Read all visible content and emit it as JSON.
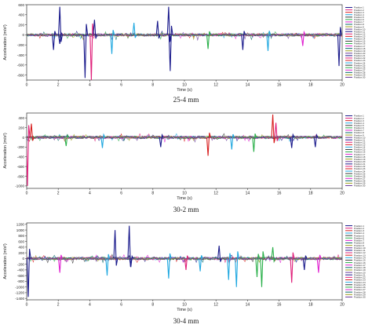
{
  "captions": [
    "25-4 mm",
    "30-2 mm",
    "30-4 mm"
  ],
  "chart_data": [
    {
      "type": "line",
      "caption": "25-4 mm",
      "xlabel": "Time (s)",
      "ylabel": "Acceleration (m/s²)",
      "xlim": [
        0,
        20
      ],
      "ylim": [
        -900,
        600
      ],
      "xticks": [
        0,
        2,
        4,
        6,
        8,
        10,
        12,
        14,
        16,
        18,
        20
      ],
      "yticks": [
        600,
        400,
        200,
        0,
        -200,
        -400,
        -600,
        -800
      ],
      "legend_position": "right",
      "legend": [
        "Position 1",
        "Position 2",
        "Position 3",
        "Position 4",
        "Position 5",
        "Position 6",
        "Position 7",
        "Position 8",
        "Position 9",
        "Position 10",
        "Position 11",
        "Position 12",
        "Position 13",
        "Position 14",
        "Position 15",
        "Position 16",
        "Position 17",
        "Position 18",
        "Position 19",
        "Position 20",
        "Position 21",
        "Position 22",
        "Position 23",
        "Position 24",
        "Position 25",
        "Position 26",
        "Position 27",
        "Position 28",
        "Position 29",
        "Position 30"
      ],
      "colors": [
        "#1a1a8c",
        "#e0207a",
        "#d81e1e",
        "#20a8e0",
        "#3a3a3a",
        "#2ab04a",
        "#e020d0",
        "#0a6a6a",
        "#a0a020",
        "#6a3a9a"
      ],
      "spikes": [
        {
          "x": 2.1,
          "y": 560,
          "series": 1
        },
        {
          "x": 2.1,
          "y": -180,
          "series": 1
        },
        {
          "x": 3.7,
          "y": -860,
          "series": 1
        },
        {
          "x": 4.1,
          "y": -900,
          "series": 2
        },
        {
          "x": 4.3,
          "y": 300,
          "series": 1
        },
        {
          "x": 9.0,
          "y": 560,
          "series": 1
        },
        {
          "x": 9.1,
          "y": -720,
          "series": 1
        },
        {
          "x": 8.3,
          "y": 280,
          "series": 1
        },
        {
          "x": 5.4,
          "y": -380,
          "series": 4
        },
        {
          "x": 1.7,
          "y": -300,
          "series": 1
        },
        {
          "x": 11.5,
          "y": -280,
          "series": 6
        },
        {
          "x": 13.7,
          "y": -300,
          "series": 1
        },
        {
          "x": 15.3,
          "y": -320,
          "series": 4
        },
        {
          "x": 17.5,
          "y": -220,
          "series": 7
        },
        {
          "x": 19.8,
          "y": -620,
          "series": 1
        },
        {
          "x": 6.8,
          "y": 240,
          "series": 4
        }
      ]
    },
    {
      "type": "line",
      "caption": "30-2 mm",
      "xlabel": "Time (s)",
      "ylabel": "Acceleration (m/s²)",
      "xlim": [
        0,
        20
      ],
      "ylim": [
        -1050,
        500
      ],
      "xticks": [
        0,
        2,
        4,
        6,
        8,
        10,
        12,
        14,
        16,
        18,
        20
      ],
      "yticks": [
        400,
        200,
        0,
        -200,
        -400,
        -600,
        -800,
        -1000
      ],
      "legend_position": "right",
      "legend": [
        "Position 1",
        "Position 2",
        "Position 3",
        "Position 4",
        "Position 5",
        "Position 6",
        "Position 7",
        "Position 8",
        "Position 9",
        "Position 10",
        "Position 11",
        "Position 12",
        "Position 13",
        "Position 14",
        "Position 15",
        "Position 16",
        "Position 17",
        "Position 18",
        "Position 19",
        "Position 20",
        "Position 21",
        "Position 22",
        "Position 23",
        "Position 24",
        "Position 25",
        "Position 26",
        "Position 27",
        "Position 28",
        "Position 29",
        "Position 30"
      ],
      "colors": [
        "#1a1a8c",
        "#e0207a",
        "#d81e1e",
        "#20a8e0",
        "#3a3a3a",
        "#2ab04a",
        "#e020d0",
        "#0a6a6a",
        "#a0a020",
        "#6a3a9a"
      ],
      "spikes": [
        {
          "x": 0.05,
          "y": -1000,
          "series": 2
        },
        {
          "x": 0.3,
          "y": 280,
          "series": 3
        },
        {
          "x": 11.5,
          "y": -380,
          "series": 3
        },
        {
          "x": 15.6,
          "y": 470,
          "series": 3
        },
        {
          "x": 15.8,
          "y": 300,
          "series": 2
        },
        {
          "x": 16.8,
          "y": -220,
          "series": 1
        },
        {
          "x": 14.4,
          "y": -300,
          "series": 6
        },
        {
          "x": 18.3,
          "y": -200,
          "series": 1
        },
        {
          "x": 4.8,
          "y": -220,
          "series": 4
        },
        {
          "x": 8.5,
          "y": -200,
          "series": 1
        },
        {
          "x": 13.0,
          "y": -250,
          "series": 4
        },
        {
          "x": 2.5,
          "y": -180,
          "series": 6
        }
      ]
    },
    {
      "type": "line",
      "caption": "30-4 mm",
      "xlabel": "Time (s)",
      "ylabel": "Acceleration (m/s²)",
      "xlim": [
        0,
        20
      ],
      "ylim": [
        -1450,
        1250
      ],
      "xticks": [
        0,
        2,
        4,
        6,
        8,
        10,
        12,
        14,
        16,
        18,
        20
      ],
      "yticks": [
        1200,
        1000,
        800,
        600,
        400,
        200,
        0,
        -200,
        -400,
        -600,
        -800,
        -1000,
        -1200,
        -1400
      ],
      "legend_position": "right",
      "legend": [
        "Position 1",
        "Position 2",
        "Position 3",
        "Position 4",
        "Position 5",
        "Position 6",
        "Position 7",
        "Position 8",
        "Position 9",
        "Position 10",
        "Position 11",
        "Position 12",
        "Position 13",
        "Position 14",
        "Position 15",
        "Position 16",
        "Position 17",
        "Position 18",
        "Position 19",
        "Position 20",
        "Position 21",
        "Position 22",
        "Position 23",
        "Position 24",
        "Position 25",
        "Position 26",
        "Position 27",
        "Position 28",
        "Position 29",
        "Position 30"
      ],
      "colors": [
        "#1a1a8c",
        "#e0207a",
        "#d81e1e",
        "#20a8e0",
        "#3a3a3a",
        "#2ab04a",
        "#e020d0",
        "#0a6a6a",
        "#a0a020",
        "#6a3a9a"
      ],
      "spikes": [
        {
          "x": 0.1,
          "y": -1350,
          "series": 1
        },
        {
          "x": 5.6,
          "y": 1000,
          "series": 1
        },
        {
          "x": 6.5,
          "y": 1150,
          "series": 1
        },
        {
          "x": 6.6,
          "y": -300,
          "series": 1
        },
        {
          "x": 2.1,
          "y": -500,
          "series": 7
        },
        {
          "x": 5.1,
          "y": -600,
          "series": 4
        },
        {
          "x": 9.0,
          "y": -700,
          "series": 4
        },
        {
          "x": 12.8,
          "y": -750,
          "series": 4
        },
        {
          "x": 13.3,
          "y": -1000,
          "series": 4
        },
        {
          "x": 14.6,
          "y": -650,
          "series": 6
        },
        {
          "x": 14.9,
          "y": -1000,
          "series": 6
        },
        {
          "x": 15.6,
          "y": 400,
          "series": 6
        },
        {
          "x": 16.8,
          "y": -850,
          "series": 2
        },
        {
          "x": 18.5,
          "y": -500,
          "series": 7
        },
        {
          "x": 11.0,
          "y": -450,
          "series": 4
        },
        {
          "x": 17.6,
          "y": -400,
          "series": 1
        },
        {
          "x": 12.2,
          "y": 450,
          "series": 1
        },
        {
          "x": 10.1,
          "y": -400,
          "series": 2
        }
      ]
    }
  ]
}
